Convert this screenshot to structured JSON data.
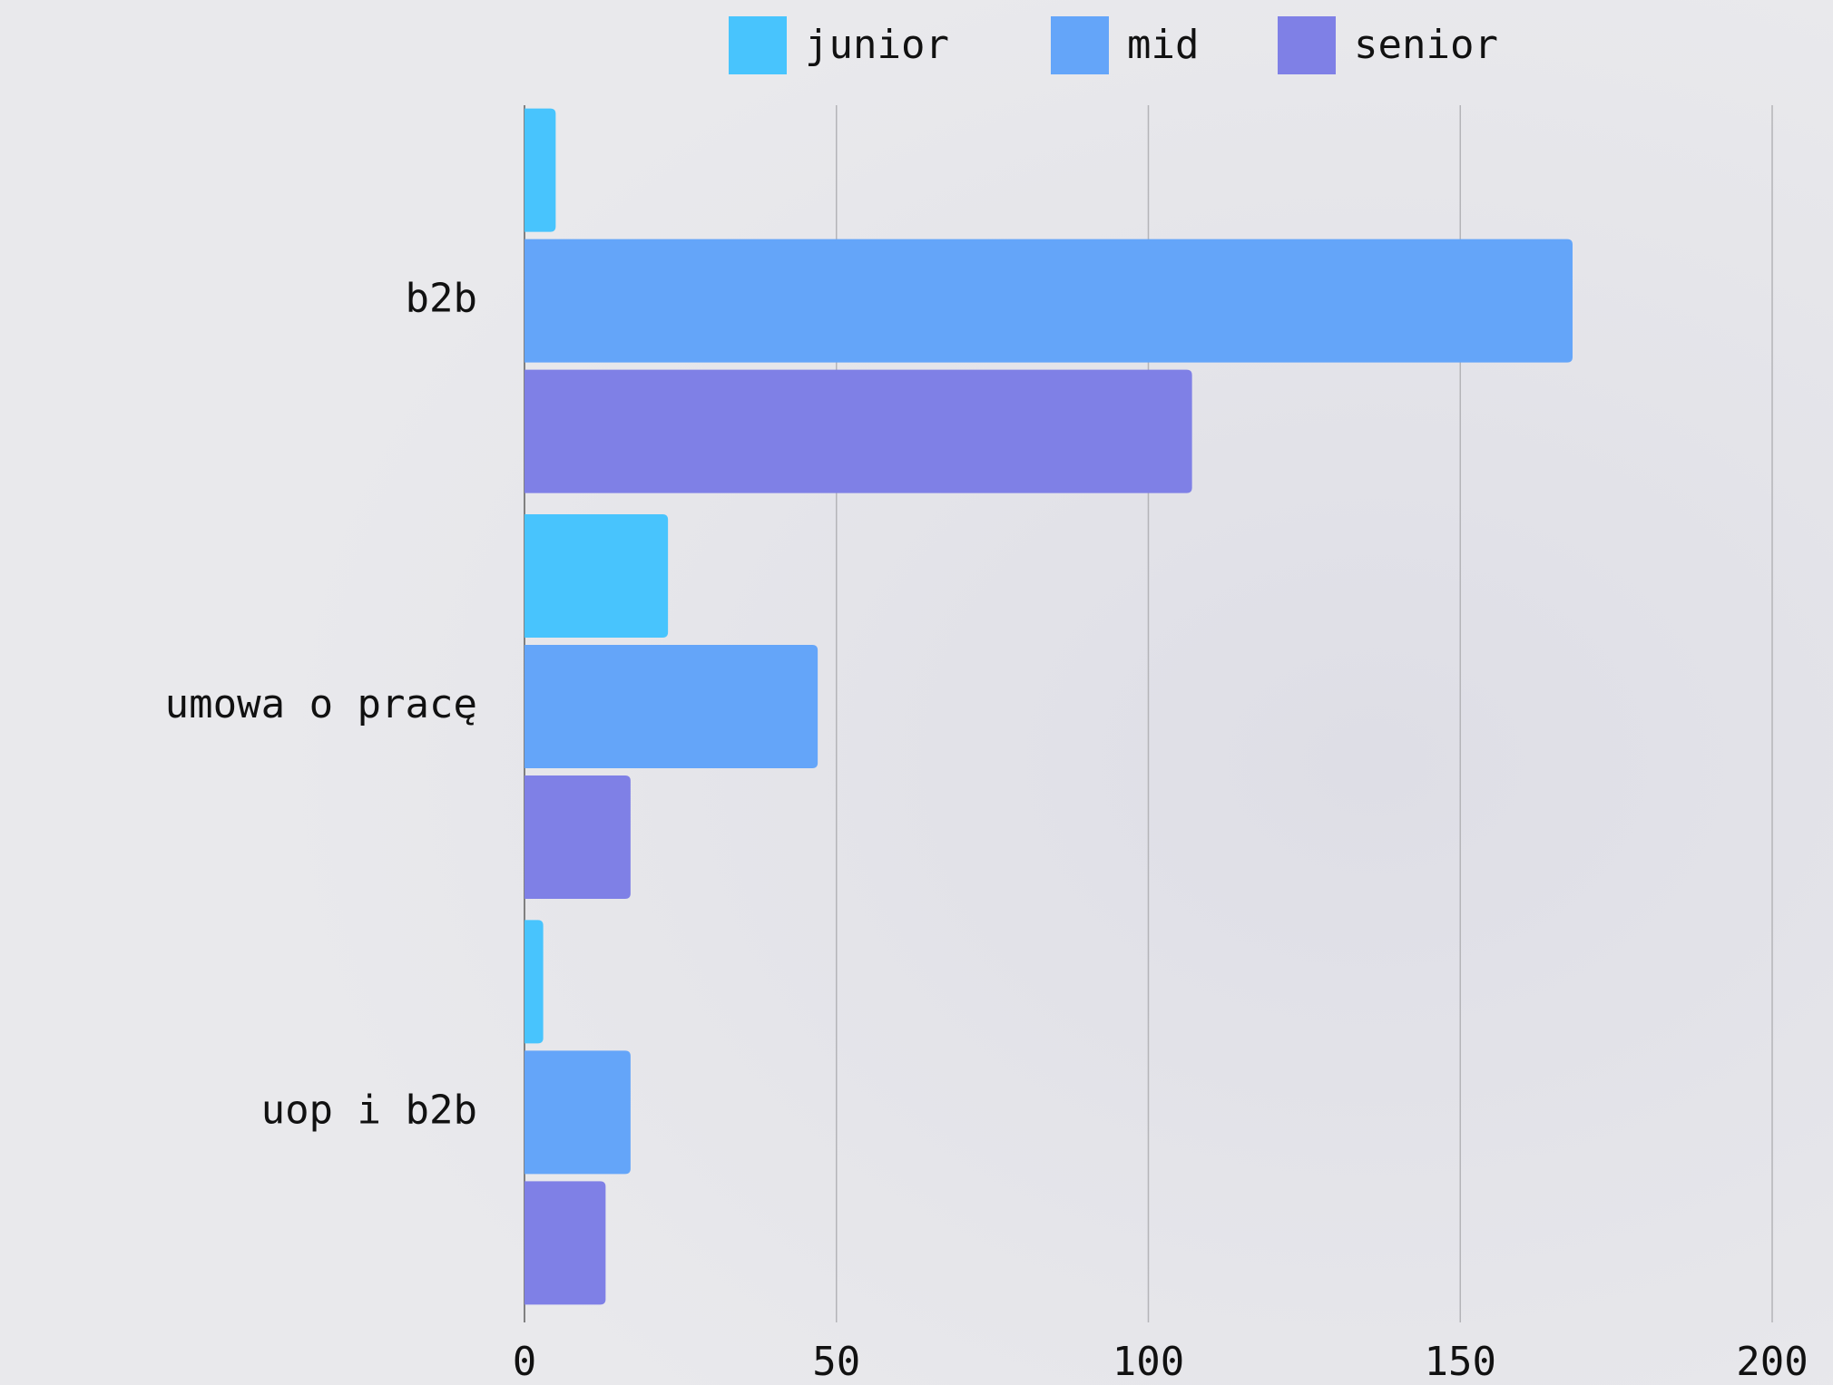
{
  "chart_data": {
    "type": "bar",
    "orientation": "horizontal",
    "categories": [
      "b2b",
      "umowa o pracę",
      "uop i b2b"
    ],
    "series": [
      {
        "name": "junior",
        "color": "#48c4fd",
        "values": [
          5,
          23,
          3
        ]
      },
      {
        "name": "mid",
        "color": "#64a5f9",
        "values": [
          168,
          47,
          17
        ]
      },
      {
        "name": "senior",
        "color": "#7f80e6",
        "values": [
          107,
          17,
          13
        ]
      }
    ],
    "xlim": [
      0,
      200
    ],
    "xticks": [
      0,
      50,
      100,
      150,
      200
    ],
    "grid": true,
    "legend": "top"
  }
}
